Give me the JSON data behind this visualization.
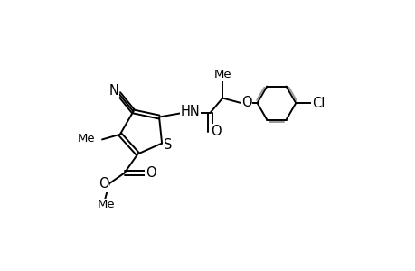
{
  "bg": "#ffffff",
  "lc": "#000000",
  "gray": "#999999",
  "bw": 1.4,
  "fs": 10.5,
  "fs_s": 9.5,
  "xlim": [
    0,
    10
  ],
  "ylim": [
    0,
    6.5
  ]
}
